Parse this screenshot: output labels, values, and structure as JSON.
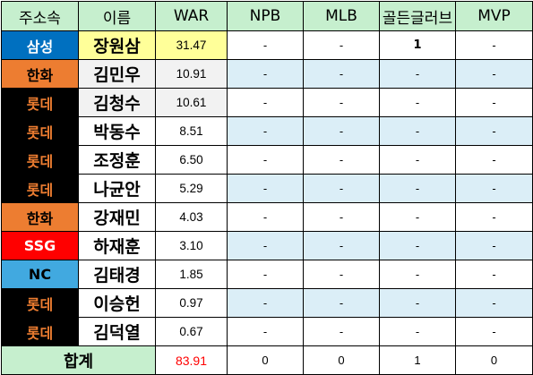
{
  "headers": [
    "주소속",
    "이름",
    "WAR",
    "NPB",
    "MLB",
    "골든글러브",
    "MVP"
  ],
  "team_colors": {
    "삼성": {
      "bg": "#0070c0",
      "fg": "#ffffff"
    },
    "한화": {
      "bg": "#ed7d31",
      "fg": "#000000"
    },
    "롯데": {
      "bg": "#000000",
      "fg": "#ed7d31"
    },
    "SSG": {
      "bg": "#ff0000",
      "fg": "#ffffff"
    },
    "NC": {
      "bg": "#41a9e0",
      "fg": "#000000"
    }
  },
  "rows": [
    {
      "team": "삼성",
      "name": "장원삼",
      "war": "31.47",
      "npb": "-",
      "mlb": "-",
      "gg": "1",
      "mvp": "-",
      "name_bg": "#ffff99",
      "war_bg": "#ffff99",
      "row_bg": "#ffffff"
    },
    {
      "team": "한화",
      "name": "김민우",
      "war": "10.91",
      "npb": "-",
      "mlb": "-",
      "gg": "-",
      "mvp": "-",
      "name_bg": "#f2f2f2",
      "war_bg": "#f2f2f2",
      "row_bg": "#dbeef7"
    },
    {
      "team": "롯데",
      "name": "김청수",
      "war": "10.61",
      "npb": "-",
      "mlb": "-",
      "gg": "-",
      "mvp": "-",
      "name_bg": "#f2f2f2",
      "war_bg": "#f2f2f2",
      "row_bg": "#ffffff"
    },
    {
      "team": "롯데",
      "name": "박동수",
      "war": "8.51",
      "npb": "-",
      "mlb": "-",
      "gg": "-",
      "mvp": "-",
      "name_bg": "#ffffff",
      "war_bg": "#ffffff",
      "row_bg": "#dbeef7"
    },
    {
      "team": "롯데",
      "name": "조정훈",
      "war": "6.50",
      "npb": "-",
      "mlb": "-",
      "gg": "-",
      "mvp": "-",
      "name_bg": "#ffffff",
      "war_bg": "#ffffff",
      "row_bg": "#ffffff"
    },
    {
      "team": "롯데",
      "name": "나균안",
      "war": "5.29",
      "npb": "-",
      "mlb": "-",
      "gg": "-",
      "mvp": "-",
      "name_bg": "#ffffff",
      "war_bg": "#ffffff",
      "row_bg": "#dbeef7"
    },
    {
      "team": "한화",
      "name": "강재민",
      "war": "4.03",
      "npb": "-",
      "mlb": "-",
      "gg": "-",
      "mvp": "-",
      "name_bg": "#ffffff",
      "war_bg": "#ffffff",
      "row_bg": "#ffffff"
    },
    {
      "team": "SSG",
      "name": "하재훈",
      "war": "3.10",
      "npb": "-",
      "mlb": "-",
      "gg": "-",
      "mvp": "-",
      "name_bg": "#ffffff",
      "war_bg": "#ffffff",
      "row_bg": "#dbeef7"
    },
    {
      "team": "NC",
      "name": "김태경",
      "war": "1.85",
      "npb": "-",
      "mlb": "-",
      "gg": "-",
      "mvp": "-",
      "name_bg": "#ffffff",
      "war_bg": "#ffffff",
      "row_bg": "#ffffff"
    },
    {
      "team": "롯데",
      "name": "이승헌",
      "war": "0.97",
      "npb": "-",
      "mlb": "-",
      "gg": "-",
      "mvp": "-",
      "name_bg": "#ffffff",
      "war_bg": "#ffffff",
      "row_bg": "#dbeef7"
    },
    {
      "team": "롯데",
      "name": "김덕열",
      "war": "0.67",
      "npb": "-",
      "mlb": "-",
      "gg": "-",
      "mvp": "-",
      "name_bg": "#ffffff",
      "war_bg": "#ffffff",
      "row_bg": "#ffffff"
    }
  ],
  "totals": {
    "label": "합계",
    "war": "83.91",
    "npb": "0",
    "mlb": "0",
    "gg": "1",
    "mvp": "0"
  }
}
